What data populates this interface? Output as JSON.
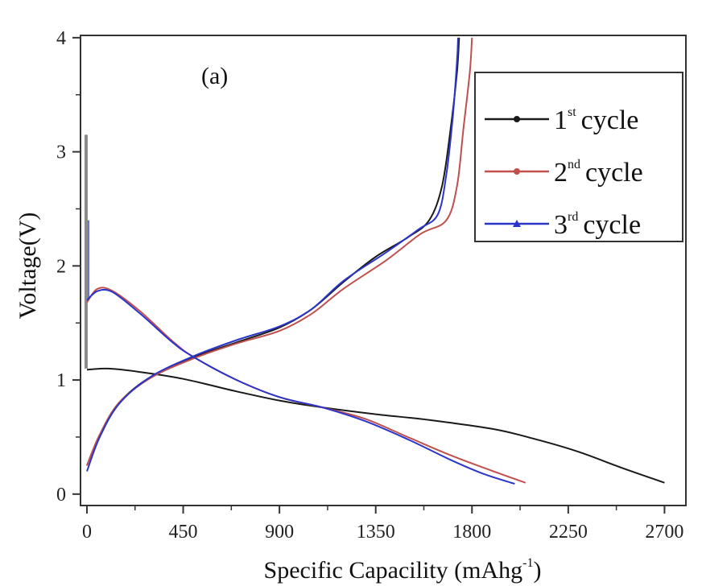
{
  "chart_data": {
    "type": "line",
    "panel_label": "(a)",
    "xlabel": "Specific Capacility (mAhg",
    "xlabel_sup": "-1",
    "xlabel_close": ")",
    "ylabel": "Voltage(V)",
    "xlim": [
      -30,
      2800
    ],
    "ylim": [
      -0.1,
      4.02
    ],
    "xticks": [
      0,
      450,
      900,
      1350,
      1800,
      2250,
      2700
    ],
    "xtick_labels": [
      "0",
      "450",
      "900",
      "1350",
      "1800",
      "2250",
      "2700"
    ],
    "yticks": [
      0,
      1,
      2,
      3,
      4
    ],
    "ytick_labels": [
      "0",
      "1",
      "2",
      "3",
      "4"
    ],
    "legend_position": "top-right",
    "series": [
      {
        "name": "1st cycle",
        "name_base": "1",
        "name_sup": "st",
        "name_rest": "cycle",
        "color": "#1a1a1a",
        "marker": "circle",
        "discharge": [
          [
            0,
            1.09
          ],
          [
            100,
            1.1
          ],
          [
            250,
            1.07
          ],
          [
            450,
            1.01
          ],
          [
            700,
            0.9
          ],
          [
            900,
            0.82
          ],
          [
            1100,
            0.76
          ],
          [
            1350,
            0.7
          ],
          [
            1600,
            0.65
          ],
          [
            1900,
            0.57
          ],
          [
            2100,
            0.48
          ],
          [
            2300,
            0.37
          ],
          [
            2500,
            0.23
          ],
          [
            2700,
            0.1
          ]
        ],
        "charge": [
          [
            0,
            0.25
          ],
          [
            60,
            0.52
          ],
          [
            150,
            0.8
          ],
          [
            300,
            1.03
          ],
          [
            500,
            1.2
          ],
          [
            700,
            1.33
          ],
          [
            900,
            1.46
          ],
          [
            1050,
            1.62
          ],
          [
            1200,
            1.86
          ],
          [
            1350,
            2.08
          ],
          [
            1500,
            2.25
          ],
          [
            1600,
            2.4
          ],
          [
            1660,
            2.7
          ],
          [
            1700,
            3.2
          ],
          [
            1730,
            3.7
          ],
          [
            1740,
            4.0
          ]
        ]
      },
      {
        "name": "2nd cycle",
        "name_base": "2",
        "name_sup": "nd",
        "name_rest": "cycle",
        "color": "#c0504d",
        "marker": "circle",
        "discharge": [
          [
            0,
            1.68
          ],
          [
            50,
            1.8
          ],
          [
            120,
            1.78
          ],
          [
            250,
            1.6
          ],
          [
            400,
            1.34
          ],
          [
            500,
            1.2
          ],
          [
            700,
            1.0
          ],
          [
            900,
            0.85
          ],
          [
            1100,
            0.76
          ],
          [
            1300,
            0.66
          ],
          [
            1500,
            0.5
          ],
          [
            1700,
            0.34
          ],
          [
            1900,
            0.2
          ],
          [
            2050,
            0.1
          ]
        ],
        "charge": [
          [
            0,
            0.25
          ],
          [
            60,
            0.52
          ],
          [
            150,
            0.8
          ],
          [
            300,
            1.02
          ],
          [
            500,
            1.19
          ],
          [
            700,
            1.32
          ],
          [
            900,
            1.43
          ],
          [
            1050,
            1.58
          ],
          [
            1200,
            1.8
          ],
          [
            1400,
            2.05
          ],
          [
            1560,
            2.28
          ],
          [
            1680,
            2.4
          ],
          [
            1730,
            2.7
          ],
          [
            1760,
            3.2
          ],
          [
            1790,
            3.7
          ],
          [
            1800,
            4.0
          ]
        ]
      },
      {
        "name": "3rd cycle",
        "name_base": "3",
        "name_sup": "rd",
        "name_rest": "cycle",
        "color": "#2b35c8",
        "marker": "triangle",
        "discharge": [
          [
            0,
            1.7
          ],
          [
            50,
            1.78
          ],
          [
            120,
            1.77
          ],
          [
            250,
            1.58
          ],
          [
            400,
            1.33
          ],
          [
            500,
            1.2
          ],
          [
            700,
            1.0
          ],
          [
            900,
            0.85
          ],
          [
            1100,
            0.76
          ],
          [
            1300,
            0.64
          ],
          [
            1500,
            0.48
          ],
          [
            1700,
            0.3
          ],
          [
            1850,
            0.18
          ],
          [
            2000,
            0.09
          ]
        ],
        "charge": [
          [
            0,
            0.2
          ],
          [
            60,
            0.5
          ],
          [
            150,
            0.79
          ],
          [
            300,
            1.03
          ],
          [
            500,
            1.21
          ],
          [
            700,
            1.35
          ],
          [
            900,
            1.47
          ],
          [
            1050,
            1.62
          ],
          [
            1200,
            1.87
          ],
          [
            1400,
            2.12
          ],
          [
            1550,
            2.32
          ],
          [
            1640,
            2.45
          ],
          [
            1680,
            2.8
          ],
          [
            1710,
            3.3
          ],
          [
            1730,
            3.8
          ],
          [
            1735,
            4.0
          ]
        ]
      }
    ]
  }
}
